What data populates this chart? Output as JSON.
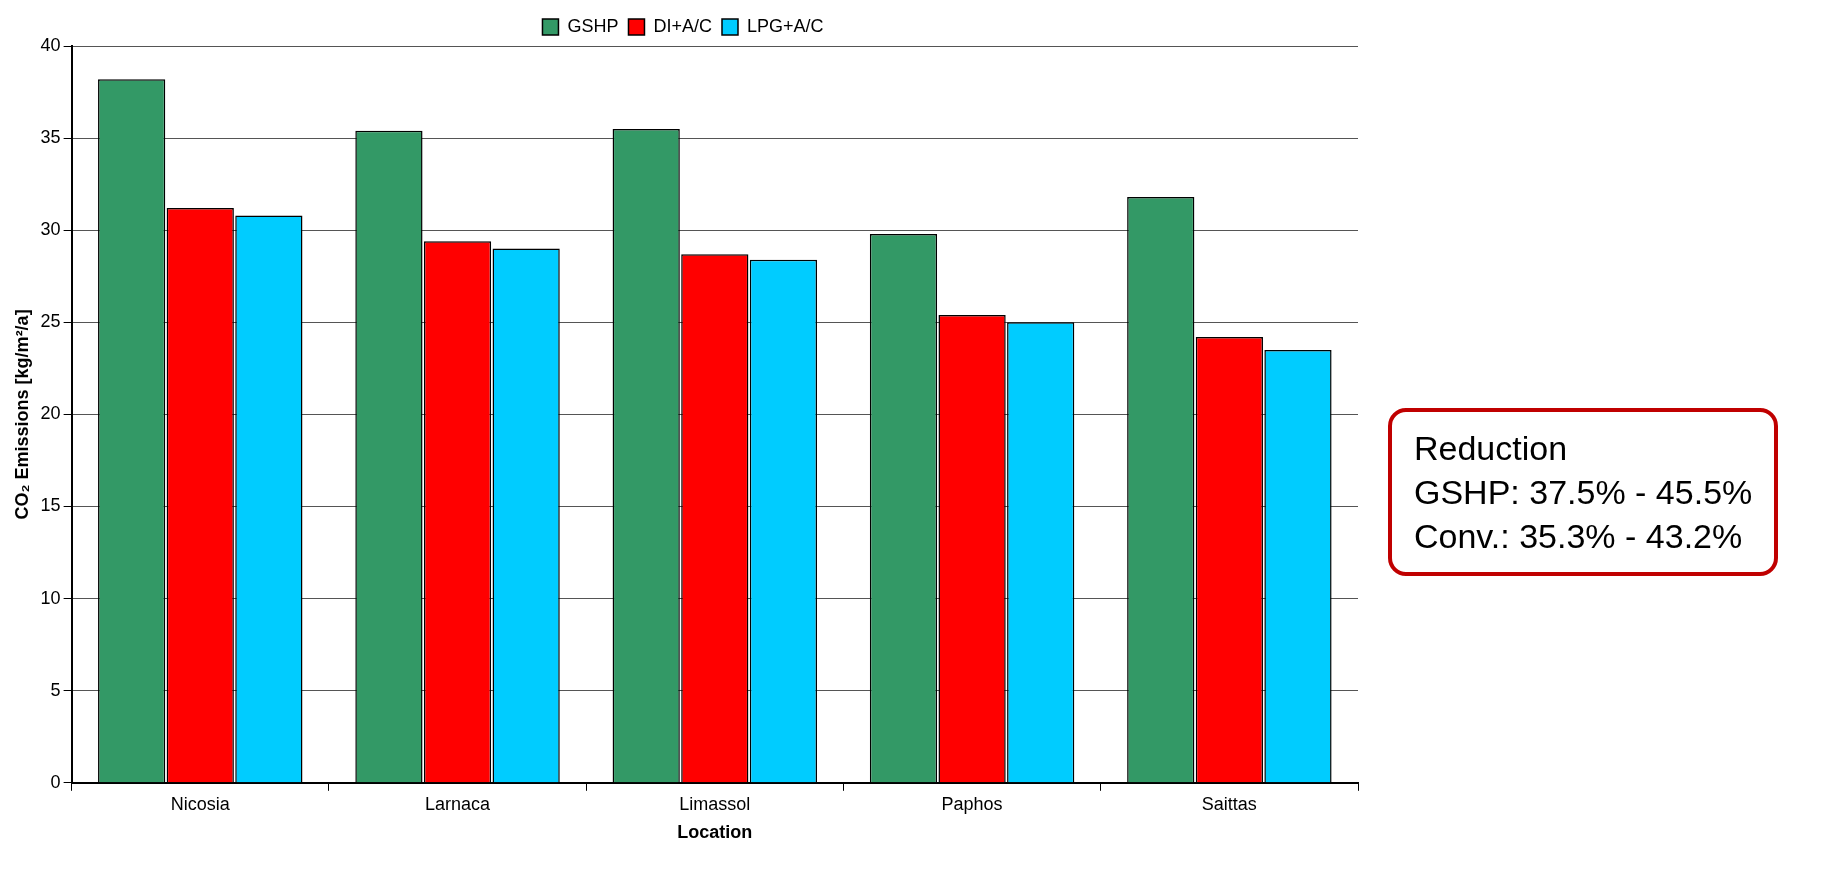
{
  "chart_data": {
    "type": "bar",
    "xlabel": "Location",
    "ylabel": "CO₂ Emissions [kg/m²/a]",
    "categories": [
      "Nicosia",
      "Larnaca",
      "Limassol",
      "Paphos",
      "Saittas"
    ],
    "series": [
      {
        "name": "GSHP",
        "color": "#339966",
        "values": [
          38.2,
          35.4,
          35.5,
          29.8,
          31.8
        ]
      },
      {
        "name": "DI+A/C",
        "color": "#ff0000",
        "values": [
          31.2,
          29.4,
          28.7,
          25.4,
          24.2
        ]
      },
      {
        "name": "LPG+A/C",
        "color": "#00ccff",
        "values": [
          30.8,
          29.0,
          28.4,
          25.0,
          23.5
        ]
      }
    ],
    "ylim": [
      0,
      40
    ],
    "yticks": [
      0,
      5,
      10,
      15,
      20,
      25,
      30,
      35,
      40
    ],
    "grid": "y",
    "legend": "top",
    "annotations": [
      "Reduction",
      "GSHP: 37.5% - 45.5%",
      "Conv.: 35.3% - 43.2%"
    ]
  }
}
